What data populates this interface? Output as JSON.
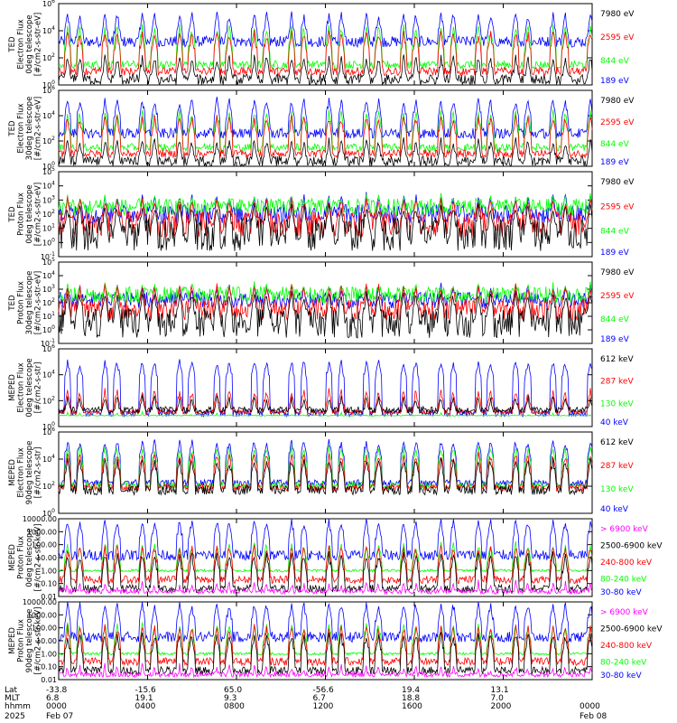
{
  "colors": {
    "blue": "#0000ff",
    "red": "#ff0000",
    "green": "#00ff00",
    "black": "#000000",
    "magenta": "#ff00ff"
  },
  "chart_data": [
    {
      "type": "line",
      "ylabel": [
        "TED",
        "Electron Flux",
        "0deg telescope",
        "[#/cm2-s-str-eV]"
      ],
      "ylog": true,
      "ylim": [
        1,
        1000000
      ],
      "ytick_labels": [
        "10^0",
        "10^2",
        "10^4",
        "10^6"
      ],
      "series": [
        {
          "name": "7980 eV",
          "color": "black",
          "base": 0.4,
          "spike": 2.0,
          "noise": 0.4
        },
        {
          "name": "2595 eV",
          "color": "red",
          "base": 1.0,
          "spike": 3.8,
          "noise": 0.3
        },
        {
          "name": "844 eV",
          "color": "green",
          "base": 1.5,
          "spike": 4.2,
          "noise": 0.3
        },
        {
          "name": "189 eV",
          "color": "blue",
          "base": 3.2,
          "spike": 5.2,
          "noise": 0.4
        }
      ]
    },
    {
      "type": "line",
      "ylabel": [
        "TED",
        "Electron Flux",
        "30deg telescope",
        "[#/cm2-s-str-eV]"
      ],
      "ylog": true,
      "ylim": [
        1,
        1000000
      ],
      "ytick_labels": [
        "10^0",
        "10^2",
        "10^4",
        "10^6"
      ],
      "series": [
        {
          "name": "7980 eV",
          "color": "black",
          "base": 0.4,
          "spike": 2.0,
          "noise": 0.4
        },
        {
          "name": "2595 eV",
          "color": "red",
          "base": 1.0,
          "spike": 3.8,
          "noise": 0.3
        },
        {
          "name": "844 eV",
          "color": "green",
          "base": 1.5,
          "spike": 4.2,
          "noise": 0.3
        },
        {
          "name": "189 eV",
          "color": "blue",
          "base": 2.6,
          "spike": 5.2,
          "noise": 0.4
        }
      ]
    },
    {
      "type": "line",
      "ylabel": [
        "TED",
        "Proton Flux",
        "0deg telescope",
        "[#/cm2-s-str-eV]"
      ],
      "ylog": true,
      "ylim": [
        0.1,
        100000
      ],
      "ytick_labels": [
        "10^-1",
        "10^0",
        "10^1",
        "10^2",
        "10^3",
        "10^4",
        "10^5"
      ],
      "series": [
        {
          "name": "7980 eV",
          "color": "black",
          "base": 0.6,
          "spike": 2.5,
          "noise": 1.2
        },
        {
          "name": "2595 eV",
          "color": "red",
          "base": 1.3,
          "spike": 3.0,
          "noise": 0.9
        },
        {
          "name": "844 eV",
          "color": "green",
          "base": 2.5,
          "spike": 3.2,
          "noise": 0.6
        },
        {
          "name": "189 eV",
          "color": "blue",
          "base": 2.0,
          "spike": 3.3,
          "noise": 0.7
        }
      ]
    },
    {
      "type": "line",
      "ylabel": [
        "TED",
        "Proton Flux",
        "30deg telescope",
        "[#/cm2-s-str-eV]"
      ],
      "ylog": true,
      "ylim": [
        0.1,
        100000
      ],
      "ytick_labels": [
        "10^-1",
        "10^0",
        "10^1",
        "10^2",
        "10^3",
        "10^4",
        "10^5"
      ],
      "series": [
        {
          "name": "7980 eV",
          "color": "black",
          "base": 0.5,
          "spike": 2.6,
          "noise": 1.1
        },
        {
          "name": "2595 eV",
          "color": "red",
          "base": 1.5,
          "spike": 3.2,
          "noise": 0.8
        },
        {
          "name": "844 eV",
          "color": "green",
          "base": 2.6,
          "spike": 3.3,
          "noise": 0.6
        },
        {
          "name": "189 eV",
          "color": "blue",
          "base": 2.2,
          "spike": 3.2,
          "noise": 0.6
        }
      ]
    },
    {
      "type": "line",
      "ylabel": [
        "MEPED",
        "Electron Flux",
        "0deg telescope",
        "[#/cm2-s-str]"
      ],
      "ylog": true,
      "ylim": [
        1,
        10000000
      ],
      "ytick_labels": [
        "10^0",
        "10^2",
        "10^4",
        "10^6"
      ],
      "series": [
        {
          "name": "612 keV",
          "color": "black",
          "base": 1.5,
          "spike": 2.6,
          "noise": 0.3
        },
        {
          "name": "287 keV",
          "color": "red",
          "base": 1.3,
          "spike": 3.2,
          "noise": 0.2
        },
        {
          "name": "130 keV",
          "color": "green",
          "base": 1.0,
          "spike": 1.1,
          "noise": 0.05
        },
        {
          "name": "40 keV",
          "color": "blue",
          "base": 1.2,
          "spike": 5.8,
          "noise": 0.3
        }
      ]
    },
    {
      "type": "line",
      "ylabel": [
        "MEPED",
        "Electron Flux",
        "90deg telescope",
        "[#/cm2-s-str]"
      ],
      "ylog": true,
      "ylim": [
        1,
        10000000
      ],
      "ytick_labels": [
        "10^0",
        "10^2",
        "10^4",
        "10^6"
      ],
      "series": [
        {
          "name": "612 keV",
          "color": "black",
          "base": 2.0,
          "spike": 4.5,
          "noise": 0.4
        },
        {
          "name": "287 keV",
          "color": "red",
          "base": 2.2,
          "spike": 5.0,
          "noise": 0.3
        },
        {
          "name": "130 keV",
          "color": "green",
          "base": 2.4,
          "spike": 5.6,
          "noise": 0.3
        },
        {
          "name": "40 keV",
          "color": "blue",
          "base": 2.6,
          "spike": 6.2,
          "noise": 0.3
        }
      ]
    },
    {
      "type": "line",
      "ylabel": [
        "MEPED",
        "Proton Flux",
        "0deg telescope",
        "[#/cm2-s-str-keV]"
      ],
      "ylog": true,
      "ylim": [
        0.01,
        10000
      ],
      "ytick_labels": [
        "10000.00",
        "1000.00",
        "100.00",
        "10.00",
        "1.00",
        "0.10",
        "0.01"
      ],
      "series": [
        {
          "name": "> 6900 keV",
          "color": "magenta",
          "base": -1.6,
          "spike": -1.0,
          "noise": 0.2
        },
        {
          "name": "2500-6900 keV",
          "color": "black",
          "base": -1.4,
          "spike": 1.2,
          "noise": 0.3
        },
        {
          "name": "240-800 keV",
          "color": "red",
          "base": -0.7,
          "spike": 1.8,
          "noise": 0.3
        },
        {
          "name": "80-240 keV",
          "color": "green",
          "base": 0.0,
          "spike": 2.0,
          "noise": 0.1
        },
        {
          "name": "30-80 keV",
          "color": "blue",
          "base": 1.2,
          "spike": 3.8,
          "noise": 0.4
        }
      ]
    },
    {
      "type": "line",
      "ylabel": [
        "MEPED",
        "Proton Flux",
        "90deg telescope",
        "[#/cm2-s-str-keV]"
      ],
      "ylog": true,
      "ylim": [
        0.01,
        10000
      ],
      "ytick_labels": [
        "10000.00",
        "1000.00",
        "100.00",
        "10.00",
        "1.00",
        "0.10",
        "0.01"
      ],
      "series": [
        {
          "name": "> 6900 keV",
          "color": "magenta",
          "base": -1.6,
          "spike": -1.0,
          "noise": 0.2
        },
        {
          "name": "2500-6900 keV",
          "color": "black",
          "base": -1.3,
          "spike": 1.4,
          "noise": 0.3
        },
        {
          "name": "240-800 keV",
          "color": "red",
          "base": -0.6,
          "spike": 2.0,
          "noise": 0.3
        },
        {
          "name": "80-240 keV",
          "color": "green",
          "base": 0.0,
          "spike": 2.2,
          "noise": 0.1
        },
        {
          "name": "30-80 keV",
          "color": "blue",
          "base": 1.3,
          "spike": 3.8,
          "noise": 0.4
        }
      ]
    }
  ],
  "xaxis": {
    "row_labels": [
      "Lat",
      "MLT",
      "hhmm",
      "2025"
    ],
    "ticks": [
      {
        "lat": "-33.8",
        "mlt": "6.8",
        "hhmm": "0000",
        "date": "Feb 07"
      },
      {
        "lat": "-15.6",
        "mlt": "19.1",
        "hhmm": "0400",
        "date": ""
      },
      {
        "lat": "65.0",
        "mlt": "9.3",
        "hhmm": "0800",
        "date": ""
      },
      {
        "lat": "-56.6",
        "mlt": "6.7",
        "hhmm": "1200",
        "date": ""
      },
      {
        "lat": "19.4",
        "mlt": "18.8",
        "hhmm": "1600",
        "date": ""
      },
      {
        "lat": "13.1",
        "mlt": "7.0",
        "hhmm": "2000",
        "date": ""
      },
      {
        "lat": "",
        "mlt": "",
        "hhmm": "0000",
        "date": "Feb 08"
      }
    ],
    "hours": [
      0,
      4,
      8,
      12,
      16,
      20,
      24
    ]
  }
}
